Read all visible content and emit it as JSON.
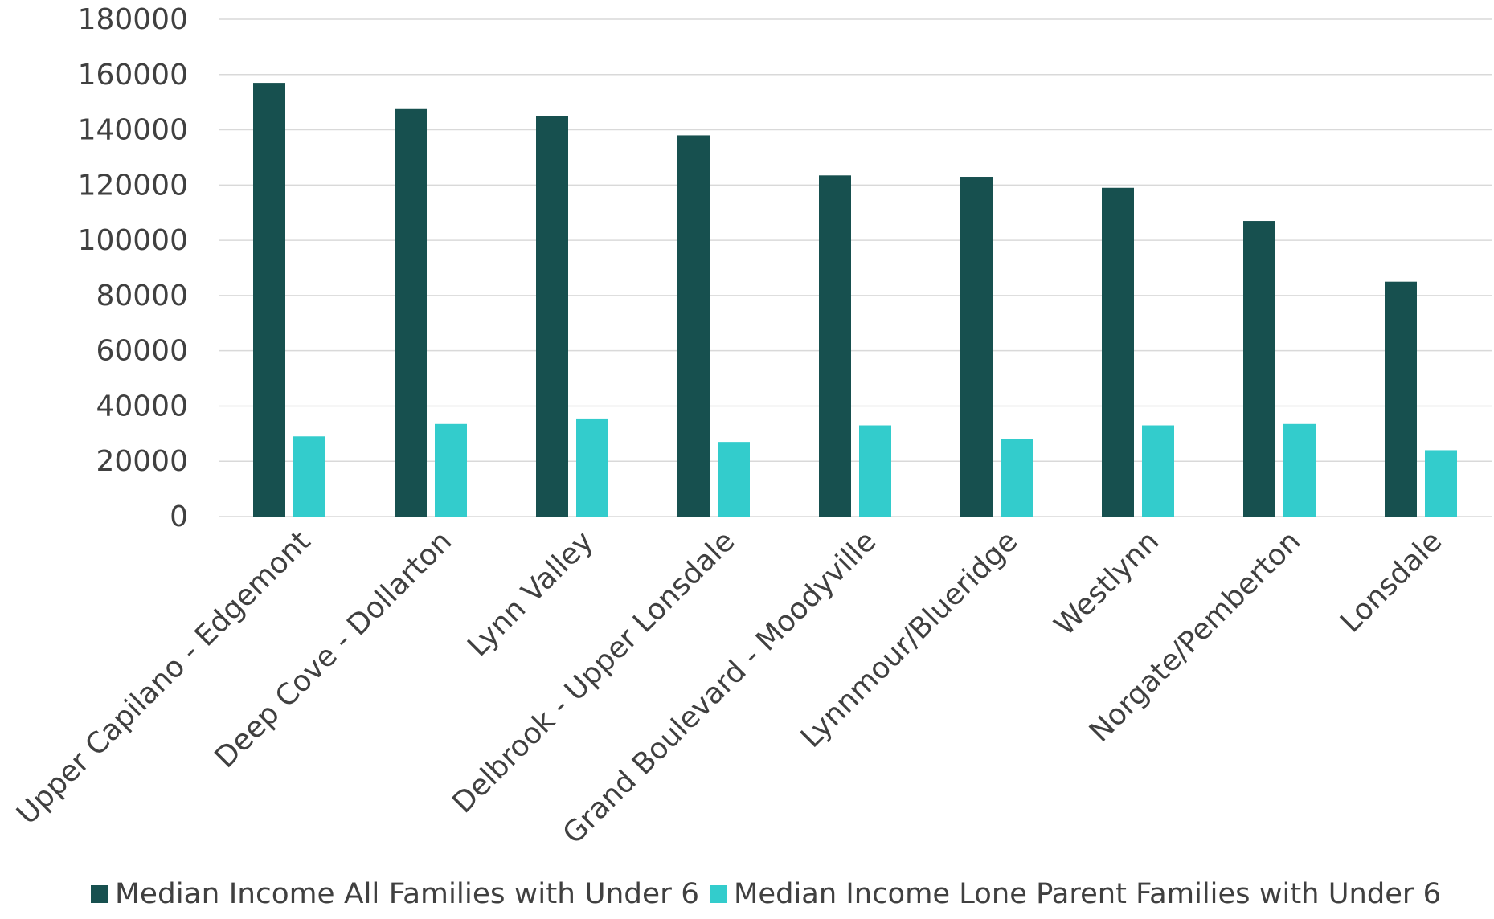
{
  "chart_data": {
    "type": "bar",
    "title": "",
    "xlabel": "",
    "ylabel": "",
    "ylim": [
      0,
      180000
    ],
    "yticks": [
      0,
      20000,
      40000,
      60000,
      80000,
      100000,
      120000,
      140000,
      160000,
      180000
    ],
    "grid": true,
    "legend_position": "bottom",
    "categories": [
      "Upper Capilano - Edgemont",
      "Deep Cove - Dollarton",
      "Lynn Valley",
      "Delbrook - Upper Lonsdale",
      "Grand Boulevard - Moodyville",
      "Lynnmour/Blueridge",
      "Westlynn",
      "Norgate/Pemberton",
      "Lonsdale"
    ],
    "series": [
      {
        "name": "Median Income All Families with  Under 6",
        "color": "#17504f",
        "values": [
          157000,
          147500,
          145000,
          138000,
          123500,
          123000,
          119000,
          107000,
          85000
        ]
      },
      {
        "name": "Median Income Lone Parent Families with Under 6",
        "color": "#33cccc",
        "values": [
          29000,
          33500,
          35500,
          27000,
          33000,
          28000,
          33000,
          33500,
          24000
        ]
      }
    ]
  }
}
